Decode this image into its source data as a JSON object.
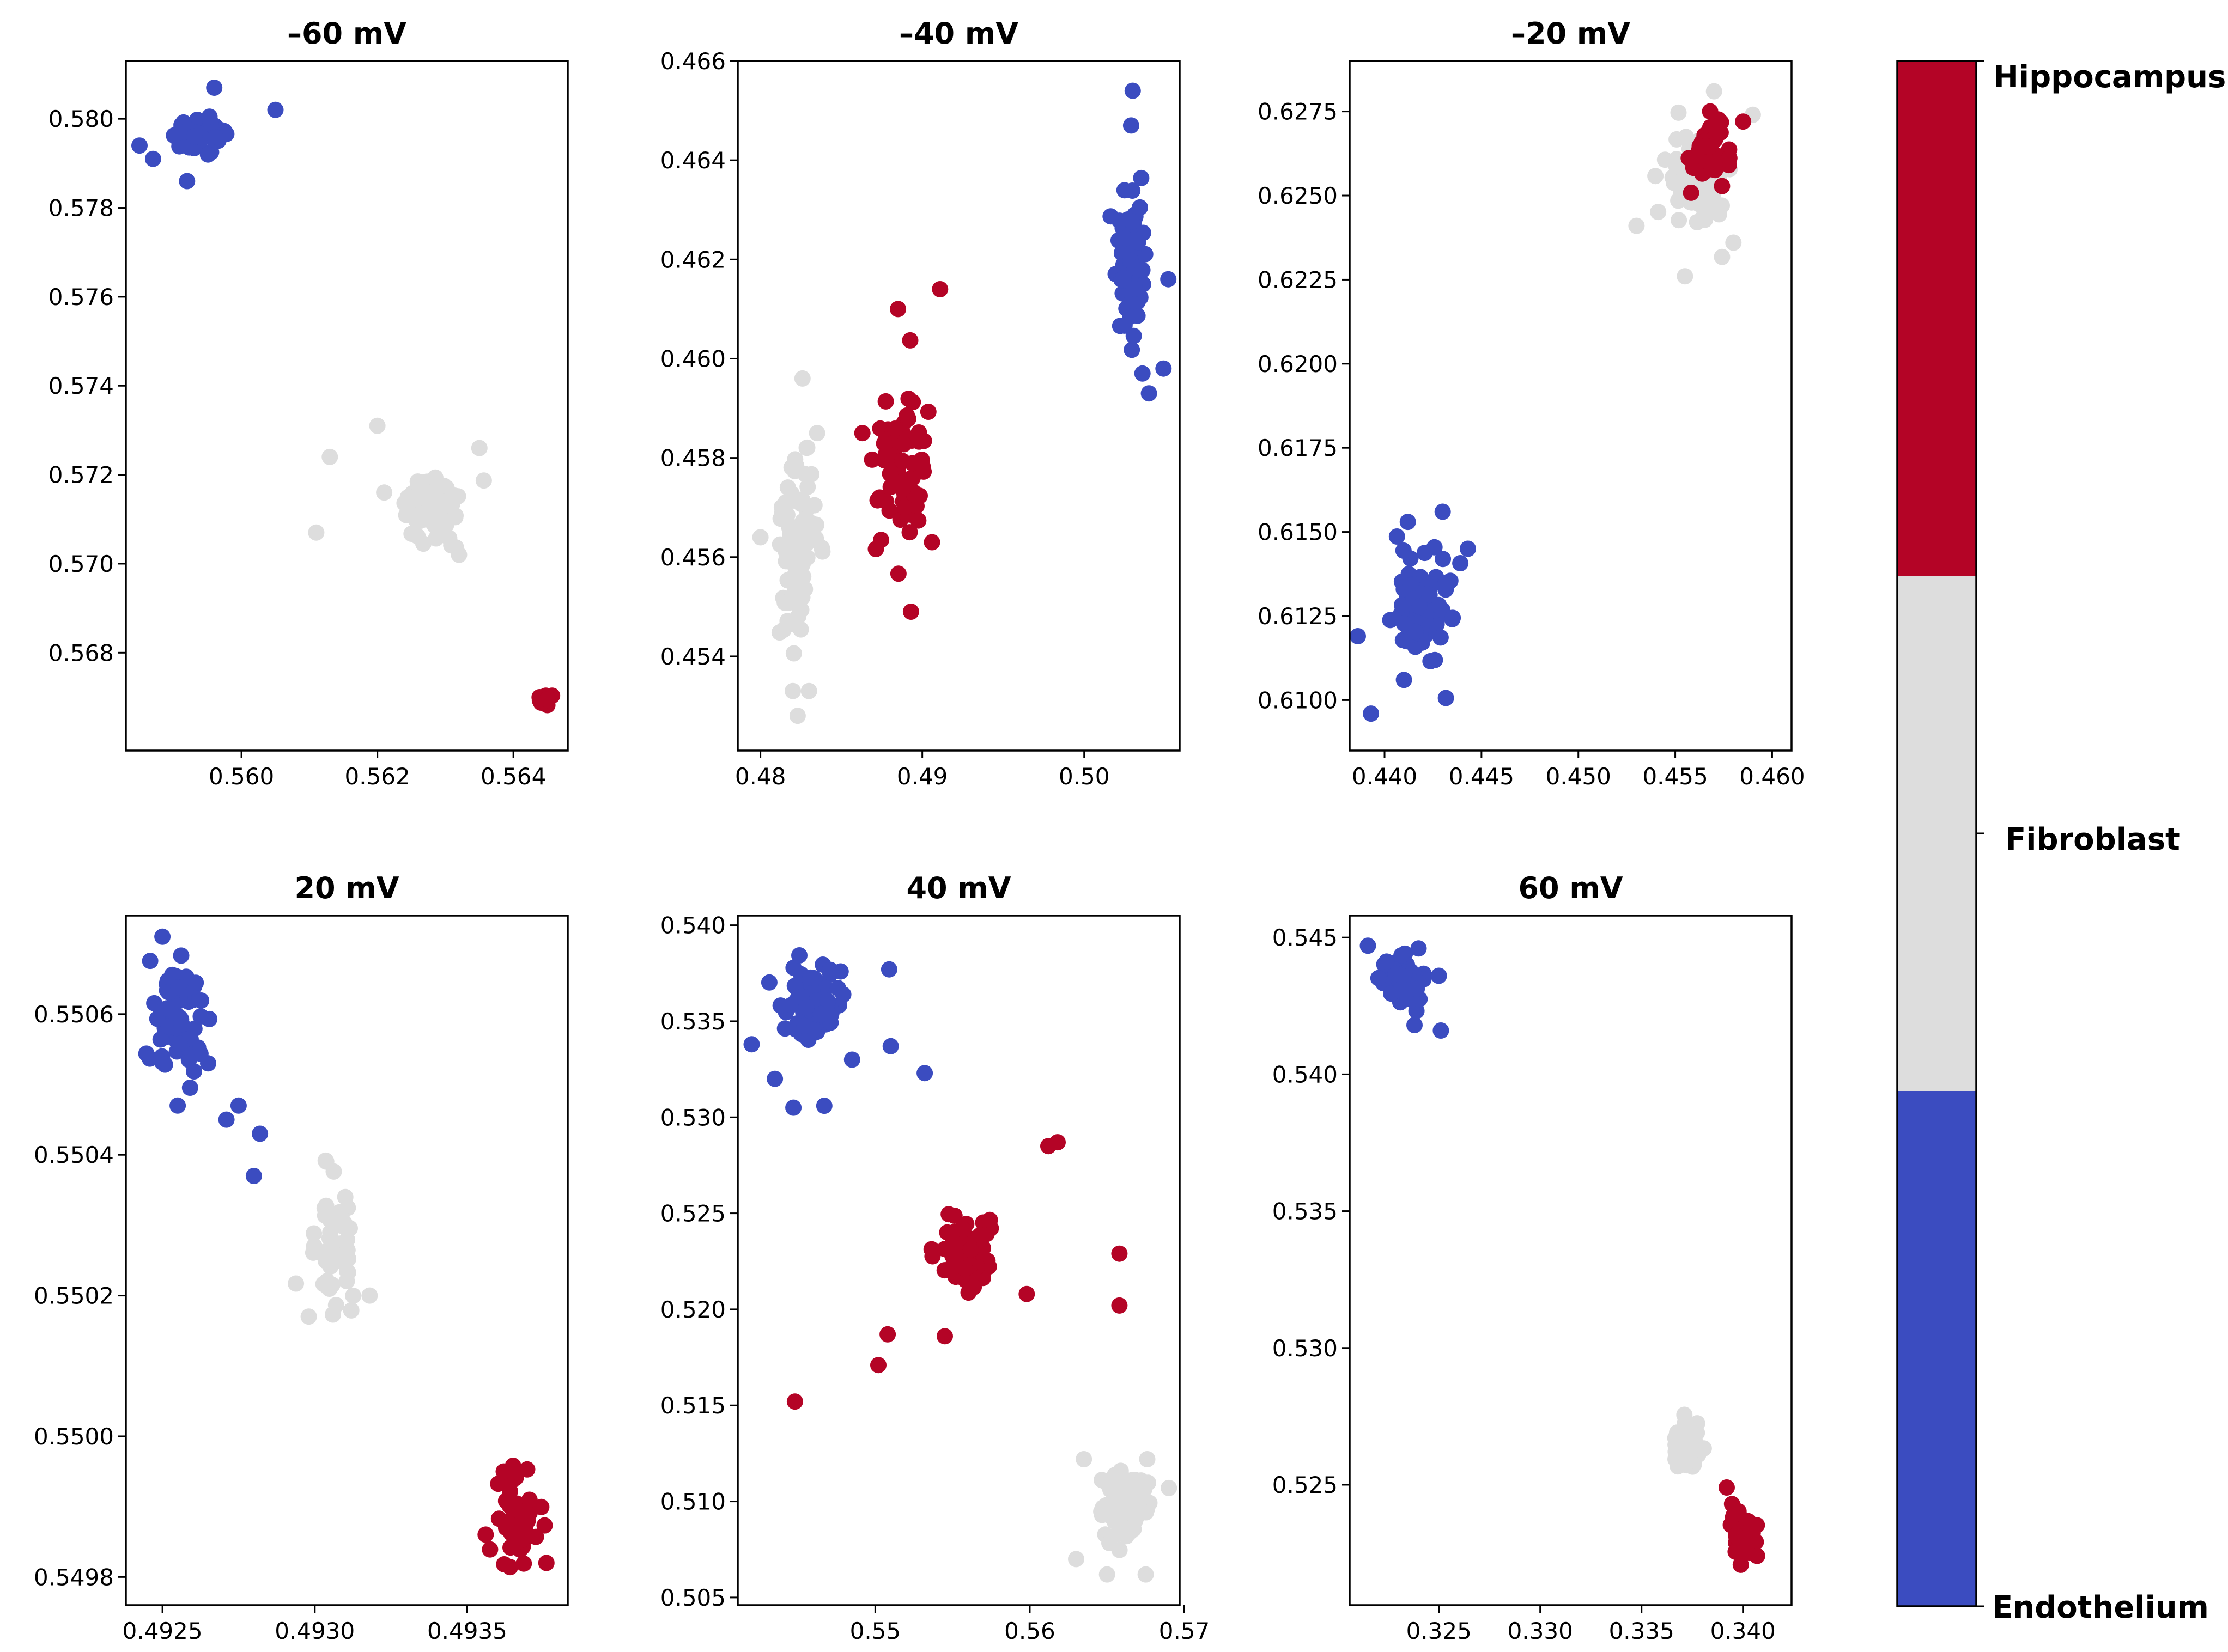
{
  "colors": {
    "Endothelium": "#3b4cc0",
    "Fibroblast": "#dddddd",
    "Hippocampus": "#b40426"
  },
  "colorbar": {
    "labels": [
      "Hippocampus",
      "Fibroblast",
      "Endothelium"
    ]
  },
  "chart_data": [
    {
      "type": "scatter",
      "title": "–60 mV",
      "xlim": [
        0.5583,
        0.5648
      ],
      "ylim": [
        0.5658,
        0.5813
      ],
      "xticks": [
        0.56,
        0.562,
        0.564
      ],
      "xtick_labels": [
        "0.560",
        "0.562",
        "0.564"
      ],
      "yticks": [
        0.568,
        0.57,
        0.572,
        0.574,
        0.576,
        0.578,
        0.58
      ],
      "ytick_labels": [
        "0.568",
        "0.570",
        "0.572",
        "0.574",
        "0.576",
        "0.578",
        "0.580"
      ],
      "series": [
        {
          "name": "Endothelium",
          "cx": 0.55935,
          "cy": 0.57965,
          "sx": 0.00025,
          "sy": 0.00025,
          "n": 70,
          "extra": [
            [
              0.5596,
              0.5807
            ],
            [
              0.5605,
              0.5802
            ],
            [
              0.5585,
              0.5794
            ],
            [
              0.5592,
              0.5786
            ],
            [
              0.5587,
              0.5791
            ]
          ]
        },
        {
          "name": "Fibroblast",
          "cx": 0.5628,
          "cy": 0.5713,
          "sx": 0.0003,
          "sy": 0.00045,
          "n": 80,
          "extra": [
            [
              0.5611,
              0.5707
            ],
            [
              0.562,
              0.5731
            ],
            [
              0.5635,
              0.5726
            ],
            [
              0.5613,
              0.5724
            ],
            [
              0.5632,
              0.5702
            ],
            [
              0.5621,
              0.5716
            ]
          ]
        },
        {
          "name": "Hippocampus",
          "cx": 0.56445,
          "cy": 0.56695,
          "sx": 7e-05,
          "sy": 7e-05,
          "n": 25,
          "extra": []
        }
      ]
    },
    {
      "type": "scatter",
      "title": "–40 mV",
      "xlim": [
        0.4786,
        0.5059
      ],
      "ylim": [
        0.4521,
        0.466
      ],
      "xticks": [
        0.48,
        0.49,
        0.5
      ],
      "xtick_labels": [
        "0.48",
        "0.49",
        "0.50"
      ],
      "yticks": [
        0.454,
        0.456,
        0.458,
        0.46,
        0.462,
        0.464,
        0.466
      ],
      "ytick_labels": [
        "0.454",
        "0.456",
        "0.458",
        "0.460",
        "0.462",
        "0.464",
        "0.466"
      ],
      "series": [
        {
          "name": "Fibroblast",
          "cx": 0.4822,
          "cy": 0.4563,
          "sx": 0.0008,
          "sy": 0.0012,
          "n": 80,
          "extra": [
            [
              0.4826,
              0.4596
            ],
            [
              0.4823,
              0.4528
            ],
            [
              0.483,
              0.4533
            ],
            [
              0.48,
              0.4564
            ],
            [
              0.4835,
              0.4585
            ],
            [
              0.482,
              0.4533
            ]
          ]
        },
        {
          "name": "Hippocampus",
          "cx": 0.4887,
          "cy": 0.4578,
          "sx": 0.0011,
          "sy": 0.0013,
          "n": 75,
          "extra": [
            [
              0.4885,
              0.461
            ],
            [
              0.4911,
              0.4614
            ],
            [
              0.4893,
              0.4549
            ],
            [
              0.4863,
              0.4585
            ],
            [
              0.4906,
              0.4563
            ]
          ]
        },
        {
          "name": "Endothelium",
          "cx": 0.5029,
          "cy": 0.4618,
          "sx": 0.0006,
          "sy": 0.0008,
          "n": 65,
          "extra": [
            [
              0.503,
              0.4654
            ],
            [
              0.5029,
              0.4647
            ],
            [
              0.5036,
              0.4597
            ],
            [
              0.504,
              0.4593
            ],
            [
              0.5049,
              0.4598
            ],
            [
              0.5052,
              0.4616
            ]
          ]
        }
      ]
    },
    {
      "type": "scatter",
      "title": "–20 mV",
      "xlim": [
        0.4382,
        0.461
      ],
      "ylim": [
        0.6085,
        0.629
      ],
      "xticks": [
        0.44,
        0.445,
        0.45,
        0.455,
        0.46
      ],
      "xtick_labels": [
        "0.440",
        "0.445",
        "0.450",
        "0.455",
        "0.460"
      ],
      "yticks": [
        0.61,
        0.6125,
        0.615,
        0.6175,
        0.62,
        0.6225,
        0.625,
        0.6275
      ],
      "ytick_labels": [
        "0.6100",
        "0.6125",
        "0.6150",
        "0.6175",
        "0.6200",
        "0.6225",
        "0.6250",
        "0.6275"
      ],
      "series": [
        {
          "name": "Fibroblast",
          "cx": 0.4562,
          "cy": 0.6255,
          "sx": 0.0011,
          "sy": 0.0011,
          "n": 80,
          "extra": [
            [
              0.453,
              0.6241
            ],
            [
              0.459,
              0.6274
            ],
            [
              0.457,
              0.6281
            ],
            [
              0.4555,
              0.6226
            ],
            [
              0.458,
              0.6236
            ]
          ]
        },
        {
          "name": "Hippocampus",
          "cx": 0.4568,
          "cy": 0.6262,
          "sx": 0.0006,
          "sy": 0.0006,
          "n": 60,
          "extra": [
            [
              0.4568,
              0.6275
            ],
            [
              0.4585,
              0.6272
            ]
          ]
        },
        {
          "name": "Endothelium",
          "cx": 0.442,
          "cy": 0.6128,
          "sx": 0.0012,
          "sy": 0.0011,
          "n": 75,
          "extra": [
            [
              0.4393,
              0.6096
            ],
            [
              0.4385,
              0.6119
            ],
            [
              0.443,
              0.6156
            ],
            [
              0.441,
              0.6106
            ],
            [
              0.4443,
              0.6145
            ],
            [
              0.4412,
              0.6153
            ]
          ]
        }
      ]
    },
    {
      "type": "scatter",
      "title": "20 mV",
      "xlim": [
        0.49238,
        0.49383
      ],
      "ylim": [
        0.54976,
        0.55074
      ],
      "xticks": [
        0.4925,
        0.493,
        0.4935
      ],
      "xtick_labels": [
        "0.4925",
        "0.4930",
        "0.4935"
      ],
      "yticks": [
        0.5498,
        0.55,
        0.5502,
        0.5504,
        0.5506
      ],
      "ytick_labels": [
        "0.5498",
        "0.5500",
        "0.5502",
        "0.5504",
        "0.5506"
      ],
      "series": [
        {
          "name": "Endothelium",
          "cx": 0.49255,
          "cy": 0.55059,
          "sx": 6e-05,
          "sy": 5e-05,
          "n": 70,
          "extra": [
            [
              0.4925,
              0.55071
            ],
            [
              0.4928,
              0.55037
            ],
            [
              0.49275,
              0.55047
            ],
            [
              0.49271,
              0.55045
            ],
            [
              0.49282,
              0.55043
            ],
            [
              0.49265,
              0.55053
            ],
            [
              0.49255,
              0.55047
            ]
          ]
        },
        {
          "name": "Fibroblast",
          "cx": 0.49306,
          "cy": 0.55027,
          "sx": 5e-05,
          "sy": 6e-05,
          "n": 60,
          "extra": [
            [
              0.49318,
              0.5502
            ],
            [
              0.4931,
              0.55034
            ]
          ]
        },
        {
          "name": "Hippocampus",
          "cx": 0.49366,
          "cy": 0.54988,
          "sx": 5e-05,
          "sy": 5e-05,
          "n": 40,
          "extra": [
            [
              0.49362,
              0.54995
            ],
            [
              0.49376,
              0.54982
            ]
          ]
        }
      ]
    },
    {
      "type": "scatter",
      "title": "40 mV",
      "xlim": [
        0.5411,
        0.5697
      ],
      "ylim": [
        0.5046,
        0.5405
      ],
      "xticks": [
        0.55,
        0.56,
        0.57
      ],
      "xtick_labels": [
        "0.55",
        "0.56",
        "0.57"
      ],
      "yticks": [
        0.505,
        0.51,
        0.515,
        0.52,
        0.525,
        0.53,
        0.535,
        0.54
      ],
      "ytick_labels": [
        "0.505",
        "0.510",
        "0.515",
        "0.520",
        "0.525",
        "0.530",
        "0.535",
        "0.540"
      ],
      "series": [
        {
          "name": "Endothelium",
          "cx": 0.546,
          "cy": 0.5362,
          "sx": 0.0014,
          "sy": 0.0013,
          "n": 75,
          "extra": [
            [
              0.542,
              0.5338
            ],
            [
              0.5435,
              0.532
            ],
            [
              0.5447,
              0.5305
            ],
            [
              0.5467,
              0.5306
            ],
            [
              0.5532,
              0.5323
            ],
            [
              0.551,
              0.5337
            ],
            [
              0.5509,
              0.5377
            ],
            [
              0.5485,
              0.533
            ]
          ]
        },
        {
          "name": "Hippocampus",
          "cx": 0.5558,
          "cy": 0.523,
          "sx": 0.0012,
          "sy": 0.0012,
          "n": 80,
          "extra": [
            [
              0.5448,
              0.5152
            ],
            [
              0.5502,
              0.5171
            ],
            [
              0.5508,
              0.5187
            ],
            [
              0.5545,
              0.5186
            ],
            [
              0.5618,
              0.5287
            ],
            [
              0.5612,
              0.5285
            ],
            [
              0.5658,
              0.5229
            ],
            [
              0.5658,
              0.5202
            ],
            [
              0.5598,
              0.5208
            ]
          ]
        },
        {
          "name": "Fibroblast",
          "cx": 0.566,
          "cy": 0.5098,
          "sx": 0.001,
          "sy": 0.0011,
          "n": 80,
          "extra": [
            [
              0.563,
              0.507
            ],
            [
              0.565,
              0.5062
            ],
            [
              0.5675,
              0.5062
            ],
            [
              0.5635,
              0.5122
            ],
            [
              0.5676,
              0.5122
            ],
            [
              0.569,
              0.5107
            ]
          ]
        }
      ]
    },
    {
      "type": "scatter",
      "title": "60 mV",
      "xlim": [
        0.3206,
        0.3424
      ],
      "ylim": [
        0.5206,
        0.5458
      ],
      "xticks": [
        0.325,
        0.33,
        0.335,
        0.34
      ],
      "xtick_labels": [
        "0.325",
        "0.330",
        "0.335",
        "0.340"
      ],
      "yticks": [
        0.525,
        0.53,
        0.535,
        0.54,
        0.545
      ],
      "ytick_labels": [
        "0.525",
        "0.530",
        "0.535",
        "0.540",
        "0.545"
      ],
      "series": [
        {
          "name": "Endothelium",
          "cx": 0.3233,
          "cy": 0.5436,
          "sx": 0.0006,
          "sy": 0.0007,
          "n": 60,
          "extra": [
            [
              0.3215,
              0.5447
            ],
            [
              0.324,
              0.5446
            ],
            [
              0.3251,
              0.5416
            ],
            [
              0.3238,
              0.5418
            ],
            [
              0.325,
              0.5436
            ]
          ]
        },
        {
          "name": "Fibroblast",
          "cx": 0.3373,
          "cy": 0.5264,
          "sx": 0.0004,
          "sy": 0.0007,
          "n": 50,
          "extra": []
        },
        {
          "name": "Hippocampus",
          "cx": 0.34,
          "cy": 0.5232,
          "sx": 0.0004,
          "sy": 0.0006,
          "n": 60,
          "extra": [
            [
              0.3392,
              0.5249
            ],
            [
              0.3407,
              0.5224
            ]
          ]
        }
      ]
    }
  ]
}
